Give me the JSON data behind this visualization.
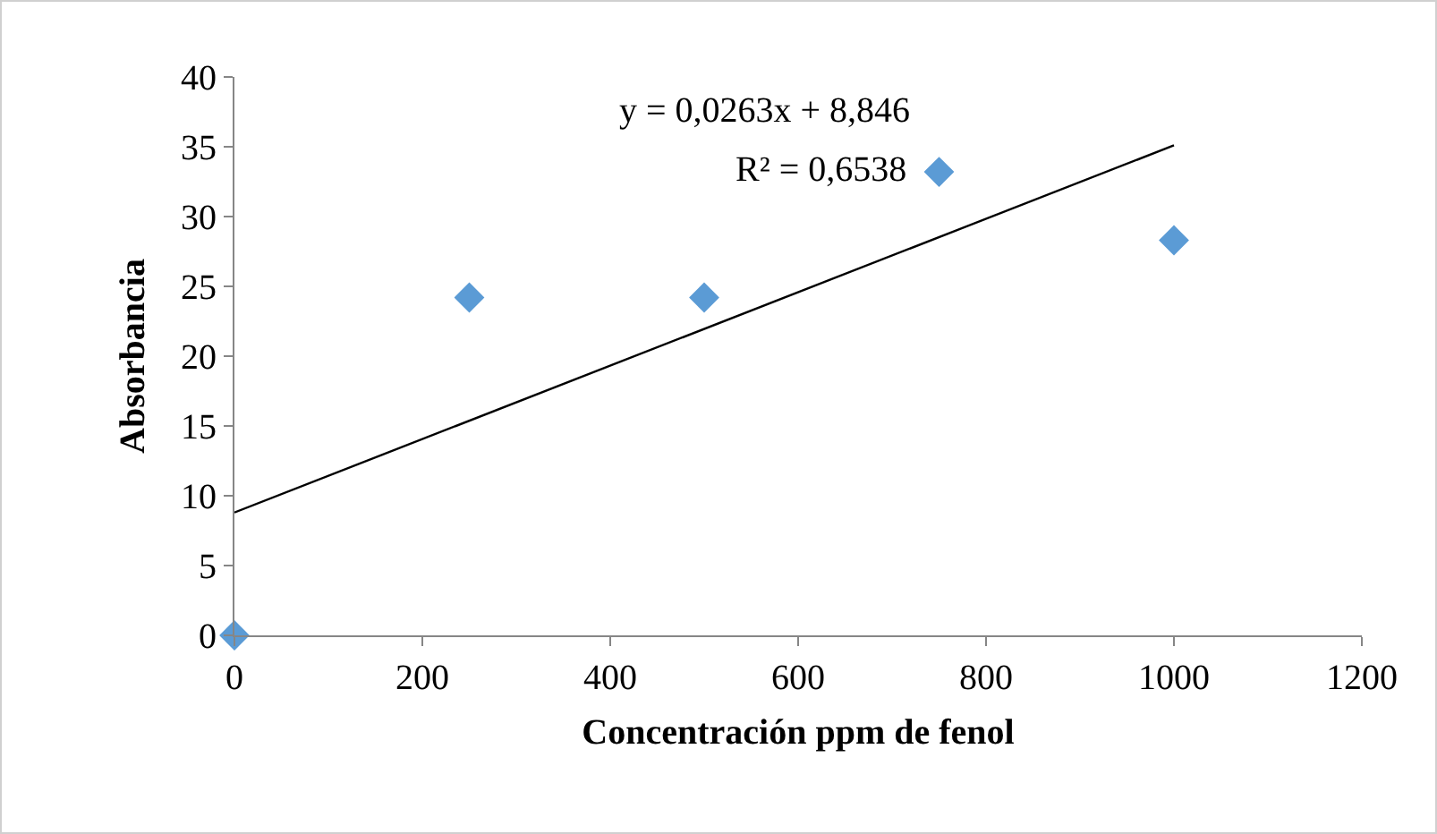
{
  "chart_data": {
    "type": "scatter",
    "xlabel": "Concentración ppm de fenol",
    "ylabel": "Absorbancia",
    "annotations": [
      "y = 0,0263x + 8,846",
      "R² = 0,6538"
    ],
    "xlim": [
      0,
      1200
    ],
    "xticks": [
      0,
      200,
      400,
      600,
      800,
      1000,
      1200
    ],
    "ylim": [
      0,
      40
    ],
    "yticks": [
      0,
      5,
      10,
      15,
      20,
      25,
      30,
      35,
      40
    ],
    "grid": false,
    "series": [
      {
        "marker": "diamond",
        "color": "#5b9bd5",
        "x": [
          0,
          250,
          500,
          750,
          1000
        ],
        "values": [
          0,
          24.2,
          24.2,
          33.2,
          28.3
        ]
      },
      {
        "type": "line",
        "color": "#000000",
        "x": [
          0,
          1000
        ],
        "values": [
          8.8,
          35.1
        ],
        "line_style": "solid"
      }
    ]
  }
}
